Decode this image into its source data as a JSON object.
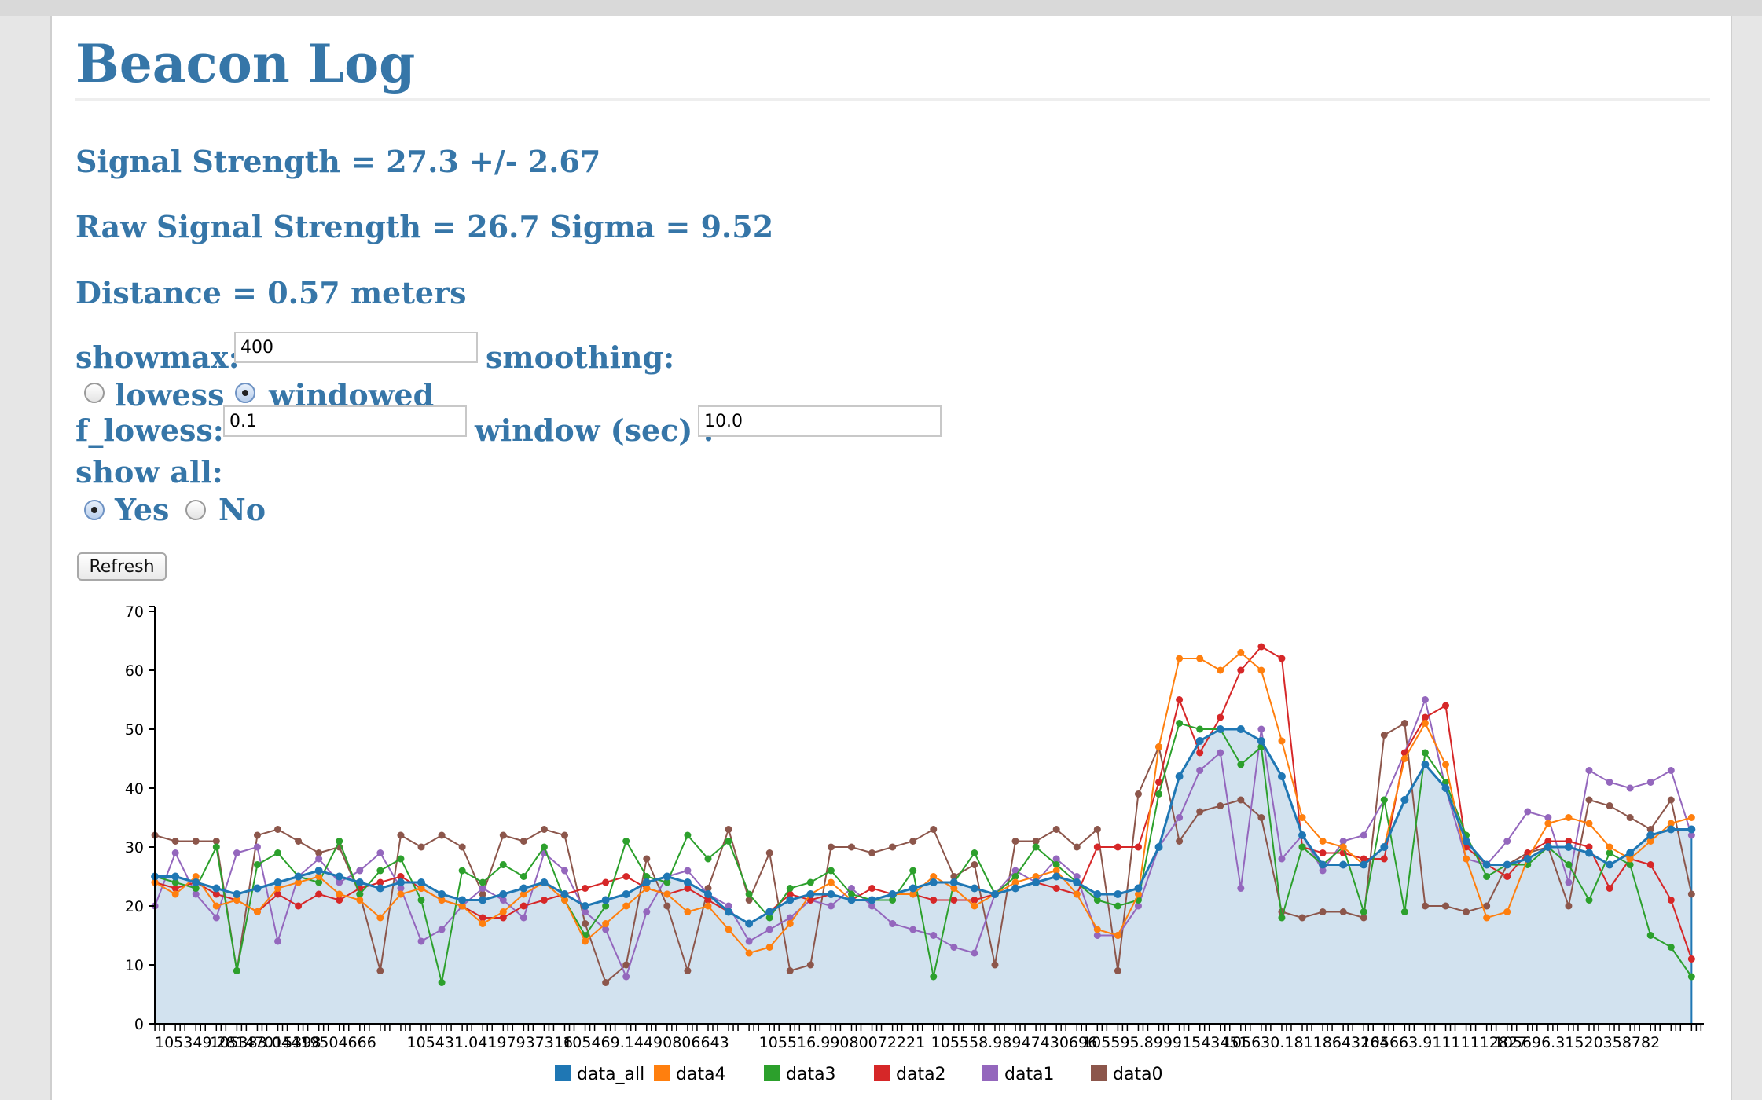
{
  "page": {
    "title": "Beacon Log",
    "signal_strength": "Signal Strength = 27.3 +/- 2.67",
    "raw_signal": "Raw Signal Strength = 26.7 Sigma = 9.52",
    "distance": "Distance = 0.57 meters"
  },
  "controls": {
    "showmax_label": "showmax:",
    "showmax_value": "400",
    "smoothing_label": "smoothing:",
    "lowess_label": "lowess",
    "windowed_label": "windowed",
    "smoothing_selected": "windowed",
    "f_lowess_label": "f_lowess:",
    "f_lowess_value": "0.1",
    "window_label": "window (sec) :",
    "window_value": "10.0",
    "show_all_label": "show all:",
    "yes_label": "Yes",
    "no_label": "No",
    "show_all_selected": "Yes",
    "refresh_label": "Refresh"
  },
  "chart_data": {
    "type": "line",
    "ylim": [
      0,
      70
    ],
    "yticks": [
      "0",
      "10",
      "20",
      "30",
      "40",
      "50",
      "60",
      "70"
    ],
    "xlim": [
      105349.28,
      105725
    ],
    "xtick_labels": [
      {
        "x": 105349.281470153,
        "label": "105349.28147015398"
      },
      {
        "x": 105383.044195047,
        "label": "105383.04419504666"
      },
      {
        "x": 105431.041979373,
        "label": "105431.04197937316"
      },
      {
        "x": 105469.144908066,
        "label": "105469.14490806643"
      },
      {
        "x": 105516.990800722,
        "label": "105516.99080072221"
      },
      {
        "x": 105558.989474307,
        "label": "105558.98947430696"
      },
      {
        "x": 105595.899915434,
        "label": "105595.89991543451"
      },
      {
        "x": 105630.181186432,
        "label": "105630.18118643264"
      },
      {
        "x": 105663.911111128,
        "label": "105663.91111112827"
      },
      {
        "x": 105696.315203588,
        "label": "105696.31520358782"
      }
    ],
    "x": [
      105349.3,
      105354.3,
      105359.3,
      105364.3,
      105369.3,
      105374.3,
      105379.3,
      105384.3,
      105389.3,
      105394.3,
      105399.3,
      105404.3,
      105409.3,
      105414.3,
      105419.3,
      105424.3,
      105429.3,
      105434.3,
      105439.3,
      105444.3,
      105449.3,
      105454.3,
      105459.3,
      105464.3,
      105469.3,
      105474.3,
      105479.3,
      105484.3,
      105489.3,
      105494.3,
      105499.3,
      105504.3,
      105509.3,
      105514.3,
      105519.3,
      105524.3,
      105529.3,
      105534.3,
      105539.3,
      105544.3,
      105549.3,
      105554.3,
      105559.3,
      105564.3,
      105569.3,
      105574.3,
      105579.3,
      105584.3,
      105589.3,
      105594.3,
      105599.3,
      105604.3,
      105609.3,
      105614.3,
      105619.3,
      105624.3,
      105629.3,
      105634.3,
      105639.3,
      105644.3,
      105649.3,
      105654.3,
      105659.3,
      105664.3,
      105669.3,
      105674.3,
      105679.3,
      105684.3,
      105689.3,
      105694.3,
      105699.3,
      105704.3,
      105709.3,
      105714.3,
      105719.3,
      105724.3
    ],
    "series": [
      {
        "name": "data_all",
        "color": "#1f77b4",
        "values": [
          25,
          25,
          24,
          23,
          22,
          23,
          24,
          25,
          26,
          25,
          24,
          23,
          24,
          24,
          22,
          21,
          21,
          22,
          23,
          24,
          22,
          20,
          21,
          22,
          24,
          25,
          24,
          22,
          19,
          17,
          19,
          21,
          22,
          22,
          21,
          21,
          22,
          23,
          24,
          24,
          23,
          22,
          23,
          24,
          25,
          24,
          22,
          22,
          23,
          30,
          42,
          48,
          50,
          50,
          48,
          42,
          32,
          27,
          27,
          27,
          30,
          38,
          44,
          40,
          31,
          27,
          27,
          28,
          30,
          30,
          29,
          27,
          29,
          32,
          33,
          33
        ]
      },
      {
        "name": "data4",
        "color": "#ff7f0e",
        "values": [
          24,
          22,
          25,
          20,
          21,
          19,
          23,
          24,
          25,
          22,
          21,
          18,
          22,
          23,
          21,
          20,
          17,
          19,
          22,
          24,
          21,
          14,
          17,
          20,
          23,
          22,
          19,
          20,
          16,
          12,
          13,
          17,
          22,
          24,
          21,
          21,
          22,
          22,
          25,
          23,
          20,
          22,
          24,
          25,
          26,
          22,
          16,
          15,
          22,
          47,
          62,
          62,
          60,
          63,
          60,
          48,
          35,
          31,
          30,
          27,
          30,
          45,
          51,
          44,
          28,
          18,
          19,
          28,
          34,
          35,
          34,
          30,
          28,
          31,
          34,
          35
        ]
      },
      {
        "name": "data3",
        "color": "#2ca02c",
        "values": [
          25,
          24,
          23,
          30,
          9,
          27,
          29,
          25,
          24,
          31,
          22,
          26,
          28,
          21,
          7,
          26,
          24,
          27,
          25,
          30,
          21,
          15,
          20,
          31,
          25,
          24,
          32,
          28,
          31,
          22,
          18,
          23,
          24,
          26,
          22,
          21,
          21,
          26,
          8,
          24,
          29,
          22,
          25,
          30,
          27,
          24,
          21,
          20,
          21,
          39,
          51,
          50,
          50,
          44,
          47,
          18,
          30,
          27,
          30,
          19,
          38,
          19,
          46,
          41,
          32,
          25,
          27,
          27,
          30,
          27,
          21,
          29,
          27,
          15,
          13,
          8
        ]
      },
      {
        "name": "data2",
        "color": "#d62728",
        "values": [
          24,
          23,
          24,
          22,
          21,
          19,
          22,
          20,
          22,
          21,
          23,
          24,
          25,
          23,
          21,
          20,
          18,
          18,
          20,
          21,
          22,
          23,
          24,
          25,
          23,
          22,
          23,
          21,
          19,
          17,
          19,
          22,
          21,
          22,
          21,
          23,
          22,
          22,
          21,
          21,
          21,
          22,
          23,
          24,
          23,
          22,
          30,
          30,
          30,
          41,
          55,
          46,
          52,
          60,
          64,
          62,
          30,
          29,
          29,
          28,
          28,
          46,
          52,
          54,
          30,
          27,
          25,
          29,
          31,
          31,
          30,
          23,
          28,
          27,
          21,
          11
        ]
      },
      {
        "name": "data1",
        "color": "#9467bd",
        "values": [
          20,
          29,
          22,
          18,
          29,
          30,
          14,
          25,
          28,
          24,
          26,
          29,
          23,
          14,
          16,
          20,
          23,
          21,
          18,
          29,
          26,
          19,
          16,
          8,
          19,
          25,
          26,
          22,
          20,
          14,
          16,
          18,
          21,
          20,
          23,
          20,
          17,
          16,
          15,
          13,
          12,
          22,
          26,
          24,
          28,
          25,
          15,
          15,
          20,
          30,
          35,
          43,
          46,
          23,
          50,
          28,
          32,
          26,
          31,
          32,
          38,
          46,
          55,
          40,
          28,
          27,
          31,
          36,
          35,
          24,
          43,
          41,
          40,
          41,
          43,
          32
        ]
      },
      {
        "name": "data0",
        "color": "#8c564b",
        "values": [
          32,
          31,
          31,
          31,
          9,
          32,
          33,
          31,
          29,
          30,
          22,
          9,
          32,
          30,
          32,
          30,
          22,
          32,
          31,
          33,
          32,
          17,
          7,
          10,
          28,
          20,
          9,
          23,
          33,
          21,
          29,
          9,
          10,
          30,
          30,
          29,
          30,
          31,
          33,
          25,
          27,
          10,
          31,
          31,
          33,
          30,
          33,
          9,
          39,
          47,
          31,
          36,
          37,
          38,
          35,
          19,
          18,
          19,
          19,
          18,
          49,
          51,
          20,
          20,
          19,
          20,
          27,
          29,
          30,
          20,
          38,
          37,
          35,
          33,
          38,
          22
        ]
      }
    ],
    "legend": [
      "data_all",
      "data4",
      "data3",
      "data2",
      "data1",
      "data0"
    ],
    "legend_placement": "bottom-center",
    "area_fill_series": "data_all"
  }
}
